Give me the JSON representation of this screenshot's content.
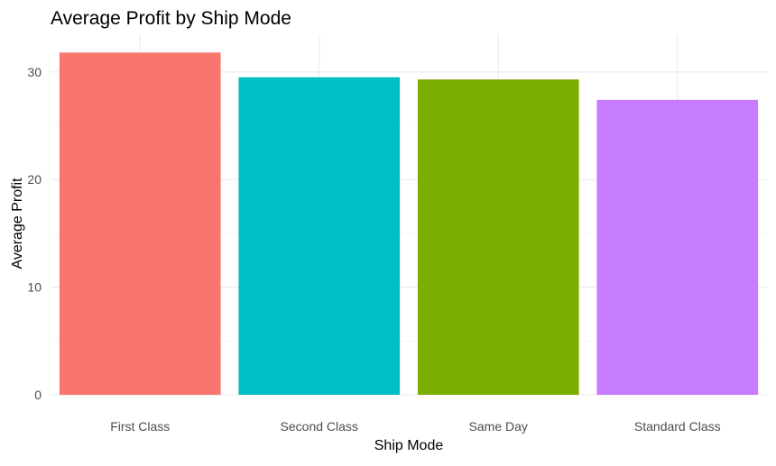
{
  "chart_data": {
    "type": "bar",
    "title": "Average Profit by Ship Mode",
    "xlabel": "Ship Mode",
    "ylabel": "Average Profit",
    "categories": [
      "First Class",
      "Second Class",
      "Same Day",
      "Standard Class"
    ],
    "values": [
      31.8,
      29.5,
      29.3,
      27.4
    ],
    "colors": [
      "#F8766D",
      "#00BFC4",
      "#7CAE00",
      "#C77CFF"
    ],
    "ylim": [
      0,
      33.5
    ],
    "yticks": [
      0,
      10,
      20,
      30
    ],
    "grid": true,
    "legend": "none"
  }
}
